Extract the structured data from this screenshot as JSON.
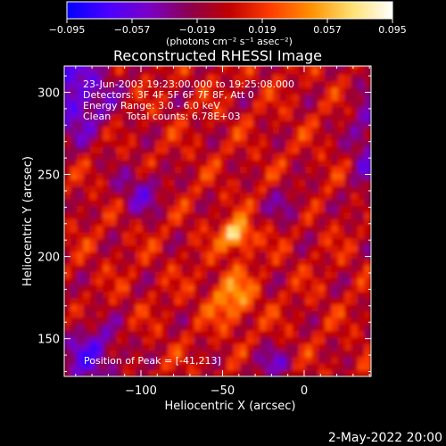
{
  "chart_data": {
    "type": "heatmap",
    "title": "Reconstructed RHESSI Image",
    "xlabel": "Heliocentric X (arcsec)",
    "ylabel": "Heliocentric Y (arcsec)",
    "xlim": [
      -147,
      41
    ],
    "ylim": [
      127,
      316
    ],
    "x_ticks": [
      -100,
      -50,
      0
    ],
    "x_tick_labels": [
      "−100",
      "−50",
      "0"
    ],
    "y_ticks": [
      150,
      200,
      250,
      300
    ],
    "y_tick_labels": [
      "150",
      "200",
      "250",
      "300"
    ],
    "colorbar": {
      "min": -0.095,
      "max": 0.095,
      "ticks": [
        -0.095,
        -0.057,
        -0.019,
        0.019,
        0.057,
        0.095
      ],
      "tick_labels": [
        "−0.095",
        "−0.057",
        "−0.019",
        "0.019",
        "0.057",
        "0.095"
      ],
      "unit_label": "(photons cm⁻² s⁻¹ asec⁻²)",
      "colors": [
        "#0000ff",
        "#4a00ff",
        "#7a00c8",
        "#8b0050",
        "#c00000",
        "#ff3c00",
        "#ff9000",
        "#ffe070",
        "#ffffff"
      ]
    },
    "info_lines": [
      "23-Jun-2003 19:23:00.000 to 19:25:08.000",
      "Detectors: 3F 4F 5F 6F 7F 8F, Att 0",
      "Energy Range: 3.0 - 6.0 keV",
      "Clean     Total counts: 6.78E+03"
    ],
    "peak_label": "Position of Peak = [-41,213]",
    "peak_position": [
      -41,
      213
    ],
    "date_stamp": "2-May-2022 20:00"
  }
}
